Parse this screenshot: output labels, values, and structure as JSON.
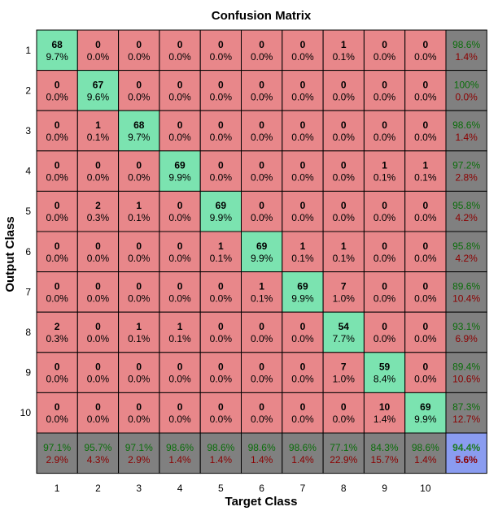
{
  "chart_data": {
    "type": "heatmap",
    "title": "Confusion Matrix",
    "xlabel": "Target Class",
    "ylabel": "Output Class",
    "x_ticks": [
      "1",
      "2",
      "3",
      "4",
      "5",
      "6",
      "7",
      "8",
      "9",
      "10"
    ],
    "y_ticks": [
      "1",
      "2",
      "3",
      "4",
      "5",
      "6",
      "7",
      "8",
      "9",
      "10"
    ],
    "counts": [
      [
        68,
        0,
        0,
        0,
        0,
        0,
        0,
        1,
        0,
        0
      ],
      [
        0,
        67,
        0,
        0,
        0,
        0,
        0,
        0,
        0,
        0
      ],
      [
        0,
        1,
        68,
        0,
        0,
        0,
        0,
        0,
        0,
        0
      ],
      [
        0,
        0,
        0,
        69,
        0,
        0,
        0,
        0,
        1,
        1
      ],
      [
        0,
        2,
        1,
        0,
        69,
        0,
        0,
        0,
        0,
        0
      ],
      [
        0,
        0,
        0,
        0,
        1,
        69,
        1,
        1,
        0,
        0
      ],
      [
        0,
        0,
        0,
        0,
        0,
        1,
        69,
        7,
        0,
        0
      ],
      [
        2,
        0,
        1,
        1,
        0,
        0,
        0,
        54,
        0,
        0
      ],
      [
        0,
        0,
        0,
        0,
        0,
        0,
        0,
        7,
        59,
        0
      ],
      [
        0,
        0,
        0,
        0,
        0,
        0,
        0,
        0,
        10,
        69
      ]
    ],
    "percents": [
      [
        "9.7%",
        "0.0%",
        "0.0%",
        "0.0%",
        "0.0%",
        "0.0%",
        "0.0%",
        "0.1%",
        "0.0%",
        "0.0%"
      ],
      [
        "0.0%",
        "9.6%",
        "0.0%",
        "0.0%",
        "0.0%",
        "0.0%",
        "0.0%",
        "0.0%",
        "0.0%",
        "0.0%"
      ],
      [
        "0.0%",
        "0.1%",
        "9.7%",
        "0.0%",
        "0.0%",
        "0.0%",
        "0.0%",
        "0.0%",
        "0.0%",
        "0.0%"
      ],
      [
        "0.0%",
        "0.0%",
        "0.0%",
        "9.9%",
        "0.0%",
        "0.0%",
        "0.0%",
        "0.0%",
        "0.1%",
        "0.1%"
      ],
      [
        "0.0%",
        "0.3%",
        "0.1%",
        "0.0%",
        "9.9%",
        "0.0%",
        "0.0%",
        "0.0%",
        "0.0%",
        "0.0%"
      ],
      [
        "0.0%",
        "0.0%",
        "0.0%",
        "0.0%",
        "0.1%",
        "9.9%",
        "0.1%",
        "0.1%",
        "0.0%",
        "0.0%"
      ],
      [
        "0.0%",
        "0.0%",
        "0.0%",
        "0.0%",
        "0.0%",
        "0.1%",
        "9.9%",
        "1.0%",
        "0.0%",
        "0.0%"
      ],
      [
        "0.3%",
        "0.0%",
        "0.1%",
        "0.1%",
        "0.0%",
        "0.0%",
        "0.0%",
        "7.7%",
        "0.0%",
        "0.0%"
      ],
      [
        "0.0%",
        "0.0%",
        "0.0%",
        "0.0%",
        "0.0%",
        "0.0%",
        "0.0%",
        "1.0%",
        "8.4%",
        "0.0%"
      ],
      [
        "0.0%",
        "0.0%",
        "0.0%",
        "0.0%",
        "0.0%",
        "0.0%",
        "0.0%",
        "0.0%",
        "1.4%",
        "9.9%"
      ]
    ],
    "row_summary": [
      [
        "98.6%",
        "1.4%"
      ],
      [
        "100%",
        "0.0%"
      ],
      [
        "98.6%",
        "1.4%"
      ],
      [
        "97.2%",
        "2.8%"
      ],
      [
        "95.8%",
        "4.2%"
      ],
      [
        "95.8%",
        "4.2%"
      ],
      [
        "89.6%",
        "10.4%"
      ],
      [
        "93.1%",
        "6.9%"
      ],
      [
        "89.4%",
        "10.6%"
      ],
      [
        "87.3%",
        "12.7%"
      ]
    ],
    "col_summary": [
      [
        "97.1%",
        "2.9%"
      ],
      [
        "95.7%",
        "4.3%"
      ],
      [
        "97.1%",
        "2.9%"
      ],
      [
        "98.6%",
        "1.4%"
      ],
      [
        "98.6%",
        "1.4%"
      ],
      [
        "98.6%",
        "1.4%"
      ],
      [
        "98.6%",
        "1.4%"
      ],
      [
        "77.1%",
        "22.9%"
      ],
      [
        "84.3%",
        "15.7%"
      ],
      [
        "98.6%",
        "1.4%"
      ]
    ],
    "overall": [
      "94.4%",
      "5.6%"
    ],
    "colors": {
      "diagonal": "#7be3b0",
      "off_diagonal": "#e8878a",
      "summary": "#808080",
      "overall": "#8a9cf0",
      "correct_text": "#0a6e0a",
      "error_text": "#8b0000",
      "overall_correct_text": "#1d7a1d",
      "overall_error_text": "#8b0000"
    }
  }
}
